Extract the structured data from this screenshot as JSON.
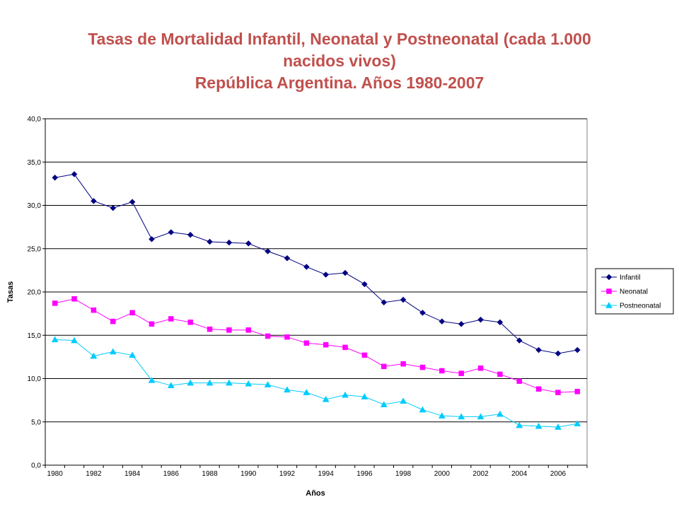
{
  "title_lines": [
    "Tasas de Mortalidad Infantil, Neonatal y Postneonatal (cada 1.000",
    "nacidos vivos)",
    "República Argentina. Años 1980-2007"
  ],
  "colors": {
    "title": "#c0504d",
    "infantil": "#000080",
    "neonatal": "#ff00ff",
    "postneonatal": "#00ccff",
    "grid": "#000000"
  },
  "chart_data": {
    "type": "line",
    "title": "Tasas de Mortalidad Infantil, Neonatal y Postneonatal (cada 1.000 nacidos vivos) República Argentina. Años 1980-2007",
    "xlabel": "Años",
    "ylabel": "Tasas",
    "ylim": [
      0,
      40
    ],
    "y_ticks": [
      "0,0",
      "5,0",
      "10,0",
      "15,0",
      "20,0",
      "25,0",
      "30,0",
      "35,0",
      "40,0"
    ],
    "x": [
      1980,
      1981,
      1982,
      1983,
      1984,
      1985,
      1986,
      1987,
      1988,
      1989,
      1990,
      1991,
      1992,
      1993,
      1994,
      1995,
      1996,
      1997,
      1998,
      1999,
      2000,
      2001,
      2002,
      2003,
      2004,
      2005,
      2006,
      2007
    ],
    "x_tick_labels": [
      "1980",
      "1982",
      "1984",
      "1986",
      "1988",
      "1990",
      "1992",
      "1994",
      "1996",
      "1998",
      "2000",
      "2002",
      "2004",
      "2006"
    ],
    "grid": true,
    "legend_position": "right",
    "series": [
      {
        "name": "Infantil",
        "marker": "diamond",
        "values": [
          33.2,
          33.6,
          30.5,
          29.7,
          30.4,
          26.1,
          26.9,
          26.6,
          25.8,
          25.7,
          25.6,
          24.7,
          23.9,
          22.9,
          22.0,
          22.2,
          20.9,
          18.8,
          19.1,
          17.6,
          16.6,
          16.3,
          16.8,
          16.5,
          14.4,
          13.3,
          12.9,
          13.3
        ]
      },
      {
        "name": "Neonatal",
        "marker": "square",
        "values": [
          18.7,
          19.2,
          17.9,
          16.6,
          17.6,
          16.3,
          16.9,
          16.5,
          15.7,
          15.6,
          15.6,
          14.9,
          14.8,
          14.1,
          13.9,
          13.6,
          12.7,
          11.4,
          11.7,
          11.3,
          10.9,
          10.6,
          11.2,
          10.5,
          9.7,
          8.8,
          8.4,
          8.5
        ]
      },
      {
        "name": "Postneonatal",
        "marker": "triangle",
        "values": [
          14.5,
          14.4,
          12.6,
          13.1,
          12.7,
          9.8,
          9.2,
          9.5,
          9.5,
          9.5,
          9.4,
          9.3,
          8.7,
          8.4,
          7.6,
          8.1,
          7.9,
          7.0,
          7.4,
          6.4,
          5.7,
          5.6,
          5.6,
          5.9,
          4.6,
          4.5,
          4.4,
          4.8
        ]
      }
    ]
  }
}
